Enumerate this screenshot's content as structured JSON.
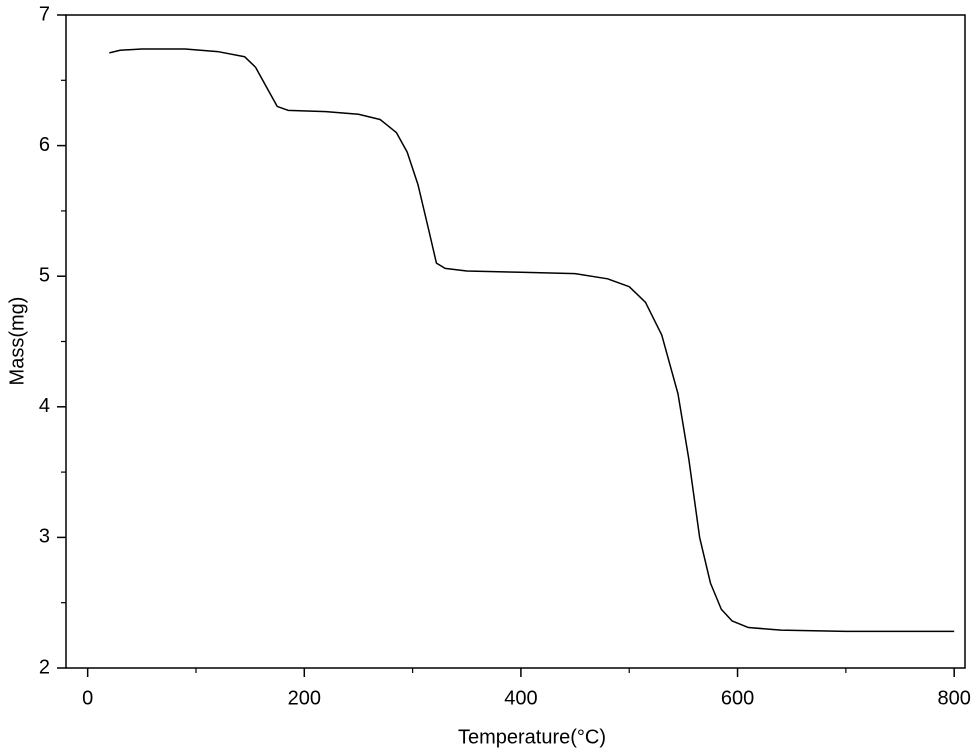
{
  "chart_data": {
    "type": "line",
    "x_label": "Temperature(°C)",
    "y_label": "Mass(mg)",
    "xlim": [
      -20,
      810
    ],
    "ylim": [
      2,
      7
    ],
    "xticks": [
      0,
      200,
      400,
      600,
      800
    ],
    "yticks": [
      2,
      3,
      4,
      5,
      6,
      7
    ],
    "xminorticks": [
      100,
      300,
      500,
      700
    ],
    "yminorticks": [
      2.5,
      3.5,
      4.5,
      5.5,
      6.5
    ],
    "series": [
      {
        "color": "#000000",
        "x": [
          20,
          30,
          50,
          90,
          120,
          145,
          155,
          165,
          175,
          185,
          220,
          250,
          270,
          285,
          295,
          305,
          315,
          322,
          330,
          350,
          400,
          450,
          480,
          500,
          515,
          530,
          545,
          555,
          565,
          575,
          585,
          595,
          610,
          640,
          700,
          800
        ],
        "values": [
          6.71,
          6.73,
          6.74,
          6.74,
          6.72,
          6.68,
          6.6,
          6.45,
          6.3,
          6.27,
          6.26,
          6.24,
          6.2,
          6.1,
          5.95,
          5.7,
          5.35,
          5.1,
          5.06,
          5.04,
          5.03,
          5.02,
          4.98,
          4.92,
          4.8,
          4.55,
          4.1,
          3.6,
          3.0,
          2.65,
          2.45,
          2.36,
          2.31,
          2.29,
          2.28,
          2.28
        ]
      }
    ]
  }
}
